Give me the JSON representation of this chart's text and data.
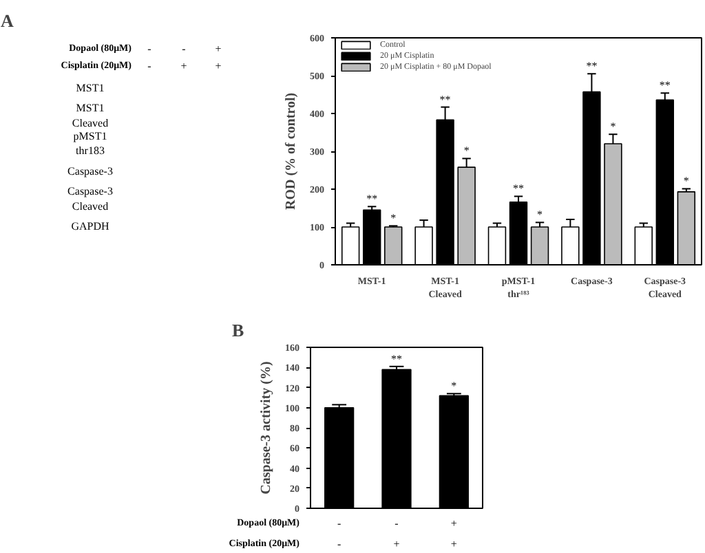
{
  "chart_data": [
    {
      "type": "other",
      "title": "A",
      "categories": [
        "-\n-",
        "-\n+",
        "+\n+"
      ],
      "annotations": [
        "Dopaol (80μM)",
        "Cisplatin (20μM)"
      ],
      "y_categories": [
        "MST1",
        "MST1\nCleaved",
        "pMST1\nthr183",
        "Caspase-3",
        "Caspase-3\nCleaved",
        "GAPDH"
      ]
    },
    {
      "type": "bar",
      "categories": [
        "MST-1",
        "MST-1\nCleaved",
        "pMST-1\nthr¹⁸³",
        "Caspase-3",
        "Caspase-3\nCleaved"
      ],
      "ylabel": "ROD (% of control)",
      "ylim": [
        0,
        600
      ],
      "yticks": [
        0,
        100,
        200,
        300,
        400,
        500,
        600
      ],
      "grid": false,
      "legend": "top left",
      "series": [
        {
          "name": "Control",
          "color": "#ffffff",
          "values": [
            100,
            100,
            100,
            100,
            100
          ],
          "errors": [
            10,
            18,
            10,
            20,
            10
          ],
          "value_labels": [
            null,
            null,
            null,
            null,
            null
          ]
        },
        {
          "name": "20 μM Cisplatin",
          "color": "#000000",
          "values": [
            145,
            383,
            166,
            457,
            436
          ],
          "errors": [
            9,
            34,
            15,
            48,
            18
          ],
          "value_labels": [
            "**",
            "**",
            "**",
            "**",
            "**"
          ]
        },
        {
          "name": "20 μM Cisplatin + 80 μM Dopaol",
          "color": "#bbbbbb",
          "values": [
            100,
            258,
            100,
            320,
            193
          ],
          "errors": [
            3,
            23,
            12,
            25,
            8
          ],
          "value_labels": [
            "*",
            "*",
            "*",
            "*",
            "*"
          ]
        }
      ]
    },
    {
      "type": "bar",
      "title": "B",
      "categories": [
        "-\n-",
        "-\n+",
        "+\n+"
      ],
      "annotations": [
        "Dopaol (80μM)",
        "Cisplatin (20μM)"
      ],
      "ylabel": "Caspase-3 activity (%)",
      "ylim": [
        0,
        160
      ],
      "yticks": [
        0,
        20,
        40,
        60,
        80,
        100,
        120,
        140,
        160
      ],
      "grid": false,
      "tick_labels": "y",
      "series": [
        {
          "color": "#000000",
          "values": [
            100,
            138,
            112
          ],
          "errors": [
            3,
            3,
            2
          ],
          "value_labels": [
            null,
            "**",
            "*"
          ]
        }
      ]
    }
  ]
}
